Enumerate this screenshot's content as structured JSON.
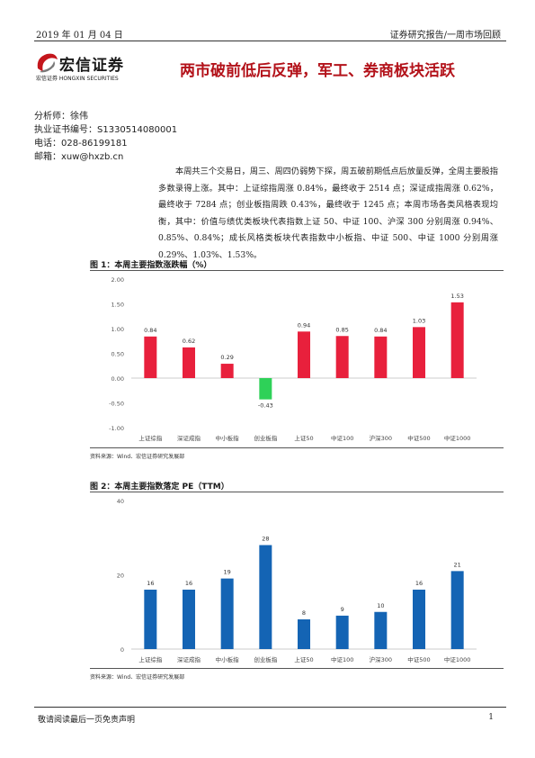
{
  "header": {
    "date": "2019 年 01 月 04 日",
    "report_type": "证券研究报告/一周市场回顾"
  },
  "logo": {
    "brand_cn": "宏信证券",
    "brand_sub": "宏信证券 HONGXIN SECURITIES"
  },
  "title": "两市破前低后反弹，军工、券商板块活跃",
  "analyst": {
    "name_line": "分析师：徐伟",
    "cert_line": "执业证书编号：S1330514080001",
    "phone_line": "电话：028-86199181",
    "email_line": "邮箱：xuw@hxzb.cn"
  },
  "body": "本周共三个交易日，周三、周四仍弱势下探，周五破前期低点后放量反弹，全周主要股指多数录得上涨。其中：上证综指周涨 0.84%，最终收于 2514 点；深证成指周涨 0.62%，最终收于 7284 点；创业板指周跌 0.43%，最终收于 1245 点；本周市场各类风格表现均衡，其中：价值与绩优类板块代表指数上证 50、中证 100、沪深 300 分别周涨 0.94%、0.85%、0.84%；成长风格类板块代表指数中小板指、中证 500、中证 1000 分别周涨 0.29%、1.03%、1.53%。",
  "figures": [
    {
      "title": "图 1：本周主要指数涨跌幅（%）",
      "source": "资料来源：Wind、宏信证券研究发展部"
    },
    {
      "title": "图 2：本周主要指数落定 PE（TTM）",
      "source": "资料来源：Wind、宏信证券研究发展部"
    }
  ],
  "chart_data": [
    {
      "type": "bar",
      "categories": [
        "上证综指",
        "深证成指",
        "中小板指",
        "创业板指",
        "上证50",
        "中证100",
        "沪深300",
        "中证500",
        "中证1000"
      ],
      "values": [
        0.84,
        0.62,
        0.29,
        -0.43,
        0.94,
        0.85,
        0.84,
        1.03,
        1.53
      ],
      "value_labels": [
        "0.84",
        "0.62",
        "0.29",
        "-0.43",
        "0.94",
        "0.85",
        "0.84",
        "1.03",
        "1.53"
      ],
      "yticks": [
        "2.00",
        "1.50",
        "1.00",
        "0.50",
        "0.00",
        "-0.50",
        "-1.00"
      ],
      "ylim": [
        -1,
        2
      ],
      "colors": {
        "positive": "#e8203c",
        "negative": "#2ed158"
      },
      "grid": false
    },
    {
      "type": "bar",
      "categories": [
        "上证综指",
        "深证成指",
        "中小板指",
        "创业板指",
        "上证50",
        "中证100",
        "沪深300",
        "中证500",
        "中证1000"
      ],
      "values": [
        16,
        16,
        19,
        28,
        8,
        9,
        10,
        16,
        21
      ],
      "value_labels": [
        "16",
        "16",
        "19",
        "28",
        "8",
        "9",
        "10",
        "16",
        "21"
      ],
      "yticks": [
        "40",
        "20",
        "0"
      ],
      "ylim": [
        0,
        40
      ],
      "colors": {
        "bar": "#1464b4"
      },
      "grid": false
    }
  ],
  "footer": {
    "disclaimer": "敬请阅读最后一页免责声明",
    "page": "1"
  }
}
